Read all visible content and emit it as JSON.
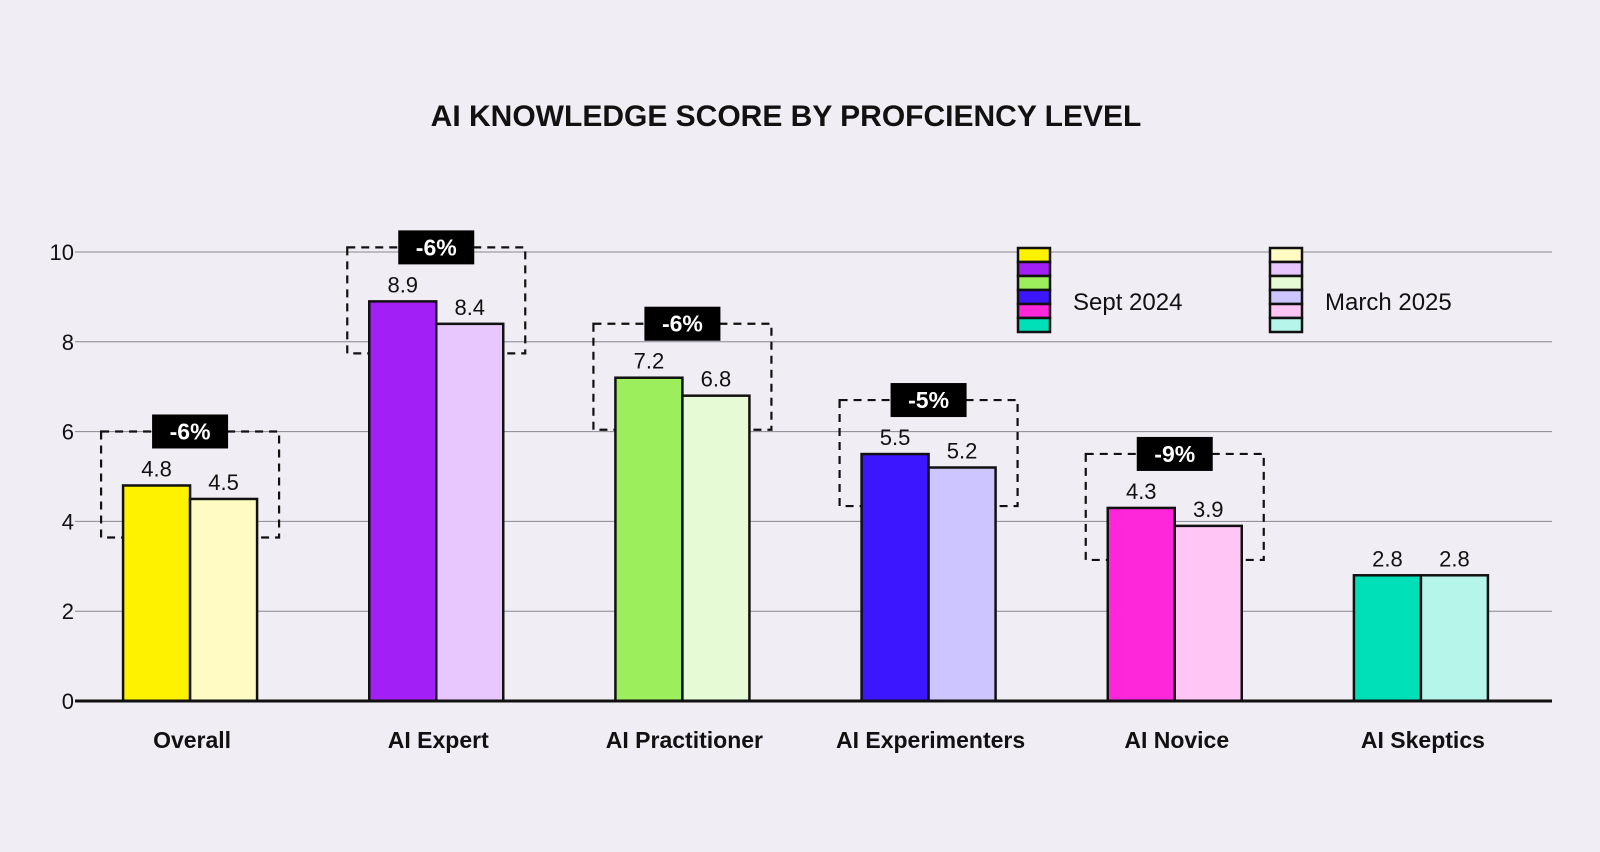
{
  "chart_data": {
    "type": "bar",
    "title": "AI KNOWLEDGE SCORE BY PROFCIENCY LEVEL",
    "xlabel": "",
    "ylabel": "",
    "ylim": [
      0,
      10
    ],
    "yticks": [
      "0",
      "2",
      "4",
      "6",
      "8",
      "10"
    ],
    "grid": true,
    "legend_position": "top-right",
    "categories": [
      "Overall",
      "AI Expert",
      "AI Practitioner",
      "AI Experimenters",
      "AI Novice",
      "AI Skeptics"
    ],
    "series": [
      {
        "name": "Sept 2024",
        "values": [
          4.8,
          8.9,
          7.2,
          5.5,
          4.3,
          2.8
        ],
        "labels": [
          "4.8",
          "8.9",
          "7.2",
          "5.5",
          "4.3",
          "2.8"
        ],
        "colors": [
          "#fff200",
          "#a21ff5",
          "#9cee5c",
          "#3c16ff",
          "#ff27d9",
          "#00e0b8"
        ]
      },
      {
        "name": "March 2025",
        "values": [
          4.5,
          8.4,
          6.8,
          5.2,
          3.9,
          2.8
        ],
        "labels": [
          "4.5",
          "8.4",
          "6.8",
          "5.2",
          "3.9",
          "2.8"
        ],
        "colors": [
          "#fffbc2",
          "#e8c6ff",
          "#e6fad6",
          "#cdc5ff",
          "#ffc5f4",
          "#b5f5ea"
        ]
      }
    ],
    "changes": [
      "-6%",
      "-6%",
      "-6%",
      "-5%",
      "-9%",
      null
    ]
  }
}
